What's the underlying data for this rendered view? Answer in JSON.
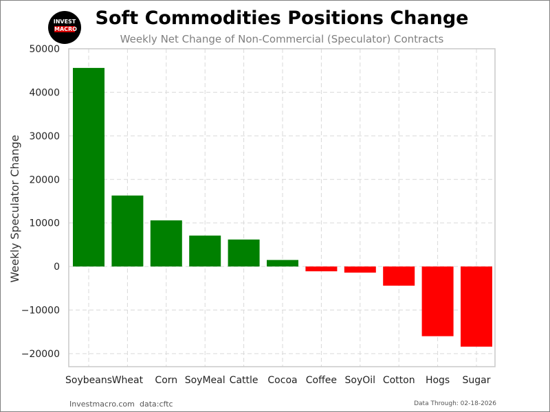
{
  "header": {
    "logo_line1": "INVEST",
    "logo_line2": "MACRO",
    "title": "Soft Commodities Positions Change",
    "subtitle": "Weekly Net Change of Non-Commercial (Speculator) Contracts"
  },
  "footer": {
    "site": "Investmacro.com",
    "source": "data:cftc",
    "data_through": "Data Through: 02-18-2026"
  },
  "colors": {
    "positive": "#008000",
    "negative": "#ff0000",
    "grid": "#d9d9d9",
    "axis_frame": "#c8c8c8"
  },
  "chart_data": {
    "type": "bar",
    "title": "Soft Commodities Positions Change",
    "subtitle": "Weekly Net Change of Non-Commercial (Speculator) Contracts",
    "xlabel": "",
    "ylabel": "Weekly Speculator Change",
    "categories": [
      "Soybeans",
      "Wheat",
      "Corn",
      "SoyMeal",
      "Cattle",
      "Cocoa",
      "Coffee",
      "SoyOil",
      "Cotton",
      "Hogs",
      "Sugar"
    ],
    "values": [
      45600,
      16300,
      10600,
      7100,
      6200,
      1500,
      -1100,
      -1400,
      -4400,
      -16000,
      -18400
    ],
    "ylim": [
      -23000,
      50000
    ],
    "yticks": [
      -20000,
      -10000,
      0,
      10000,
      20000,
      30000,
      40000,
      50000
    ],
    "ytick_labels": [
      "−20000",
      "−10000",
      "0",
      "10000",
      "20000",
      "30000",
      "40000",
      "50000"
    ],
    "grid": true,
    "legend": "none"
  }
}
